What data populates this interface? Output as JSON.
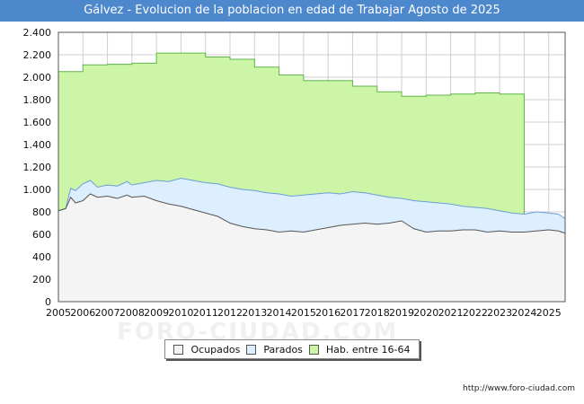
{
  "chart_data": {
    "type": "area",
    "title": "Gálvez - Evolucion de la poblacion en edad de Trabajar Agosto de 2025",
    "xlabel": "",
    "ylabel": "",
    "ylim": [
      0,
      2400
    ],
    "xlim": [
      2005,
      2025.67
    ],
    "yticks": [
      0,
      200,
      400,
      600,
      800,
      1000,
      1200,
      1400,
      1600,
      1800,
      2000,
      2200,
      2400
    ],
    "ytick_labels": [
      "0",
      "200",
      "400",
      "600",
      "800",
      "1.000",
      "1.200",
      "1.400",
      "1.600",
      "1.800",
      "2.000",
      "2.200",
      "2.400"
    ],
    "xtick_labels": [
      "2005",
      "2006",
      "2007",
      "2008",
      "2009",
      "2010",
      "2011",
      "2012",
      "2013",
      "2014",
      "2015",
      "2016",
      "2017",
      "2018",
      "2019",
      "2020",
      "2021",
      "2022",
      "2023",
      "2024",
      "2025"
    ],
    "series": [
      {
        "name": "Hab. entre 16-64",
        "color": "#ccf5a8",
        "line": "#5fb54a",
        "steps": [
          {
            "from": 2005,
            "to": 2006,
            "value": 2050
          },
          {
            "from": 2006,
            "to": 2007,
            "value": 2110
          },
          {
            "from": 2007,
            "to": 2008,
            "value": 2115
          },
          {
            "from": 2008,
            "to": 2009,
            "value": 2125
          },
          {
            "from": 2009,
            "to": 2011,
            "value": 2215
          },
          {
            "from": 2011,
            "to": 2012,
            "value": 2180
          },
          {
            "from": 2012,
            "to": 2013,
            "value": 2160
          },
          {
            "from": 2013,
            "to": 2014,
            "value": 2090
          },
          {
            "from": 2014,
            "to": 2015,
            "value": 2020
          },
          {
            "from": 2015,
            "to": 2017,
            "value": 1970
          },
          {
            "from": 2017,
            "to": 2018,
            "value": 1920
          },
          {
            "from": 2018,
            "to": 2019,
            "value": 1870
          },
          {
            "from": 2019,
            "to": 2020,
            "value": 1830
          },
          {
            "from": 2020,
            "to": 2021,
            "value": 1840
          },
          {
            "from": 2021,
            "to": 2022,
            "value": 1850
          },
          {
            "from": 2022,
            "to": 2023,
            "value": 1860
          },
          {
            "from": 2023,
            "to": 2024,
            "value": 1850
          }
        ]
      },
      {
        "name": "Parados",
        "color": "#ddeeff",
        "line": "#6a9fd8",
        "points": [
          [
            2005,
            810
          ],
          [
            2005.3,
            830
          ],
          [
            2005.5,
            1010
          ],
          [
            2005.7,
            990
          ],
          [
            2006,
            1050
          ],
          [
            2006.3,
            1080
          ],
          [
            2006.6,
            1020
          ],
          [
            2007,
            1040
          ],
          [
            2007.4,
            1030
          ],
          [
            2007.8,
            1070
          ],
          [
            2008,
            1040
          ],
          [
            2008.5,
            1060
          ],
          [
            2009,
            1080
          ],
          [
            2009.5,
            1070
          ],
          [
            2010,
            1100
          ],
          [
            2010.5,
            1080
          ],
          [
            2011,
            1060
          ],
          [
            2011.5,
            1050
          ],
          [
            2012,
            1020
          ],
          [
            2012.5,
            1000
          ],
          [
            2013,
            990
          ],
          [
            2013.5,
            970
          ],
          [
            2014,
            960
          ],
          [
            2014.5,
            940
          ],
          [
            2015,
            950
          ],
          [
            2015.5,
            960
          ],
          [
            2016,
            970
          ],
          [
            2016.5,
            960
          ],
          [
            2017,
            980
          ],
          [
            2017.5,
            970
          ],
          [
            2018,
            950
          ],
          [
            2018.5,
            930
          ],
          [
            2019,
            920
          ],
          [
            2019.5,
            900
          ],
          [
            2020,
            890
          ],
          [
            2020.5,
            880
          ],
          [
            2021,
            870
          ],
          [
            2021.5,
            850
          ],
          [
            2022,
            840
          ],
          [
            2022.5,
            830
          ],
          [
            2023,
            810
          ],
          [
            2023.5,
            790
          ],
          [
            2024,
            780
          ],
          [
            2024.5,
            800
          ],
          [
            2025,
            790
          ],
          [
            2025.4,
            780
          ],
          [
            2025.67,
            740
          ]
        ]
      },
      {
        "name": "Ocupados",
        "color": "#f4f4f4",
        "line": "#555555",
        "points": [
          [
            2005,
            810
          ],
          [
            2005.3,
            830
          ],
          [
            2005.5,
            930
          ],
          [
            2005.7,
            880
          ],
          [
            2006,
            900
          ],
          [
            2006.3,
            960
          ],
          [
            2006.6,
            930
          ],
          [
            2007,
            940
          ],
          [
            2007.4,
            920
          ],
          [
            2007.8,
            950
          ],
          [
            2008,
            930
          ],
          [
            2008.5,
            940
          ],
          [
            2009,
            900
          ],
          [
            2009.5,
            870
          ],
          [
            2010,
            850
          ],
          [
            2010.5,
            820
          ],
          [
            2011,
            790
          ],
          [
            2011.5,
            760
          ],
          [
            2012,
            700
          ],
          [
            2012.5,
            670
          ],
          [
            2013,
            650
          ],
          [
            2013.5,
            640
          ],
          [
            2014,
            620
          ],
          [
            2014.5,
            630
          ],
          [
            2015,
            620
          ],
          [
            2015.5,
            640
          ],
          [
            2016,
            660
          ],
          [
            2016.5,
            680
          ],
          [
            2017,
            690
          ],
          [
            2017.5,
            700
          ],
          [
            2018,
            690
          ],
          [
            2018.5,
            700
          ],
          [
            2019,
            720
          ],
          [
            2019.5,
            650
          ],
          [
            2020,
            620
          ],
          [
            2020.5,
            630
          ],
          [
            2021,
            630
          ],
          [
            2021.5,
            640
          ],
          [
            2022,
            640
          ],
          [
            2022.5,
            620
          ],
          [
            2023,
            630
          ],
          [
            2023.5,
            620
          ],
          [
            2024,
            620
          ],
          [
            2024.5,
            630
          ],
          [
            2025,
            640
          ],
          [
            2025.4,
            630
          ],
          [
            2025.67,
            610
          ]
        ]
      }
    ],
    "legend": [
      "Ocupados",
      "Parados",
      "Hab. entre 16-64"
    ],
    "legend_position": "bottom"
  },
  "footer": {
    "url": "http://www.foro-ciudad.com"
  },
  "watermark": "FORO-CIUDAD.COM"
}
